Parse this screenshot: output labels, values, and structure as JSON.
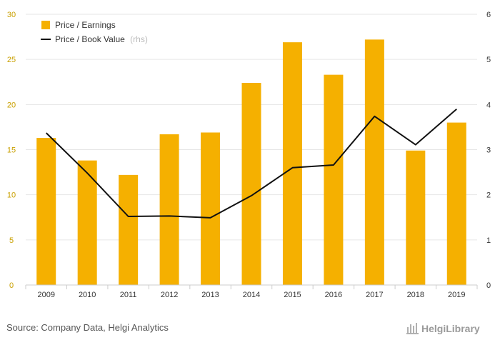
{
  "chart_data": {
    "type": "bar",
    "categories": [
      "2009",
      "2010",
      "2011",
      "2012",
      "2013",
      "2014",
      "2015",
      "2016",
      "2017",
      "2018",
      "2019"
    ],
    "series": [
      {
        "name": "Price / Earnings",
        "type": "bar",
        "axis": "left",
        "color": "#f5b000",
        "values": [
          16.3,
          13.8,
          12.2,
          16.7,
          16.9,
          22.4,
          26.9,
          23.3,
          27.2,
          14.9,
          18.0
        ]
      },
      {
        "name": "Price / Book Value",
        "name_suffix": "(rhs)",
        "type": "line",
        "axis": "right",
        "color": "#111111",
        "values": [
          3.37,
          2.48,
          1.52,
          1.53,
          1.49,
          1.98,
          2.6,
          2.66,
          3.74,
          3.11,
          3.9
        ]
      }
    ],
    "ylim_left": [
      0,
      30
    ],
    "yticks_left": [
      "0",
      "5",
      "10",
      "15",
      "20",
      "25",
      "30"
    ],
    "ylim_right": [
      0,
      6
    ],
    "yticks_right": [
      "0",
      "1",
      "2",
      "3",
      "4",
      "5",
      "6"
    ],
    "grid": true,
    "legend_position": "top-left"
  },
  "footer": {
    "source": "Source: Company Data, Helgi Analytics",
    "brand": "HelgiLibrary"
  }
}
